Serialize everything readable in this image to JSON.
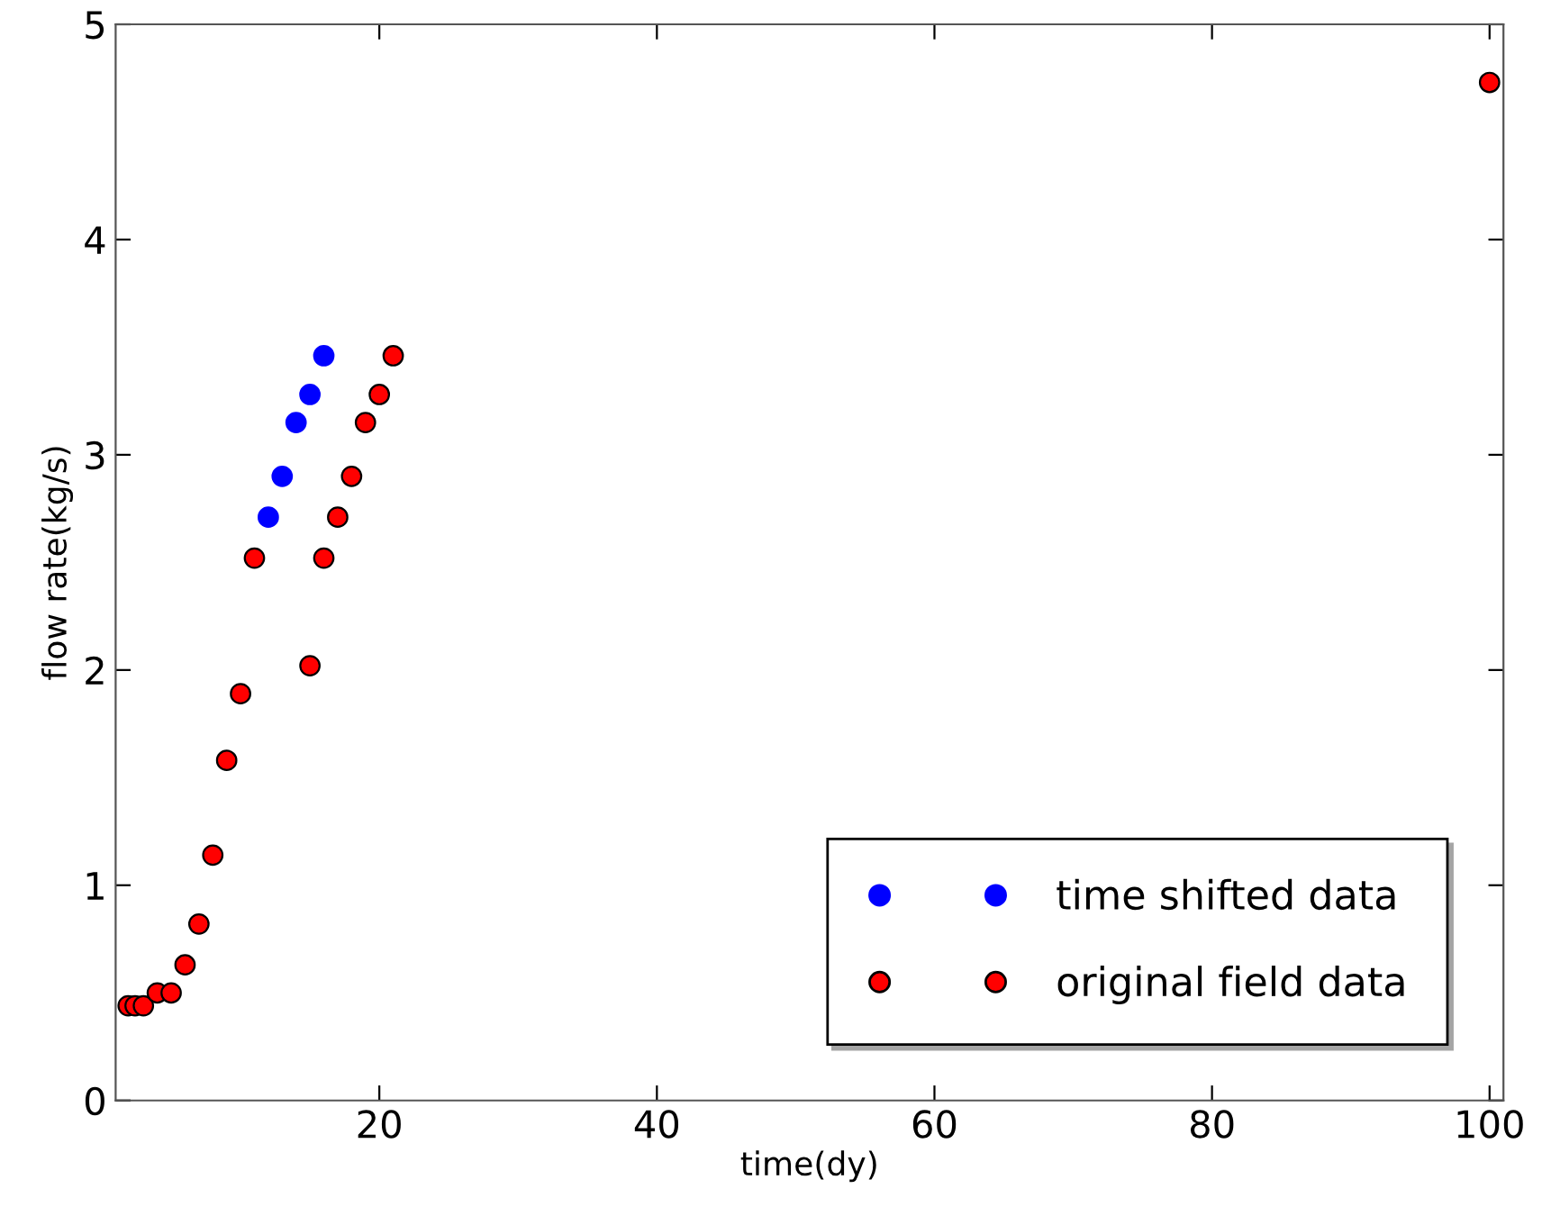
{
  "chart_data": {
    "type": "scatter",
    "xlabel": "time(dy)",
    "ylabel": "flow rate(kg/s)",
    "xlim": [
      1,
      101
    ],
    "ylim": [
      0,
      5
    ],
    "xticks": [
      20,
      40,
      60,
      80,
      100
    ],
    "yticks": [
      0,
      1,
      2,
      3,
      4,
      5
    ],
    "grid": false,
    "legend": "bottom right",
    "marker": "circle",
    "series": [
      {
        "name": "time shifted data",
        "color": "#0000ff",
        "x": [
          12,
          13,
          14,
          15,
          16
        ],
        "values": [
          2.71,
          2.9,
          3.15,
          3.28,
          3.46
        ]
      },
      {
        "name": "original field data",
        "color": "#ff0000",
        "x": [
          1.9,
          2.4,
          3,
          4,
          5,
          6,
          7,
          8,
          9,
          10,
          11,
          15,
          16,
          17,
          18,
          19,
          20,
          21,
          100
        ],
        "values": [
          0.44,
          0.44,
          0.44,
          0.5,
          0.5,
          0.63,
          0.82,
          1.14,
          1.58,
          1.89,
          2.52,
          2.02,
          2.52,
          2.71,
          2.9,
          3.15,
          3.28,
          3.46,
          4.73
        ]
      }
    ]
  }
}
